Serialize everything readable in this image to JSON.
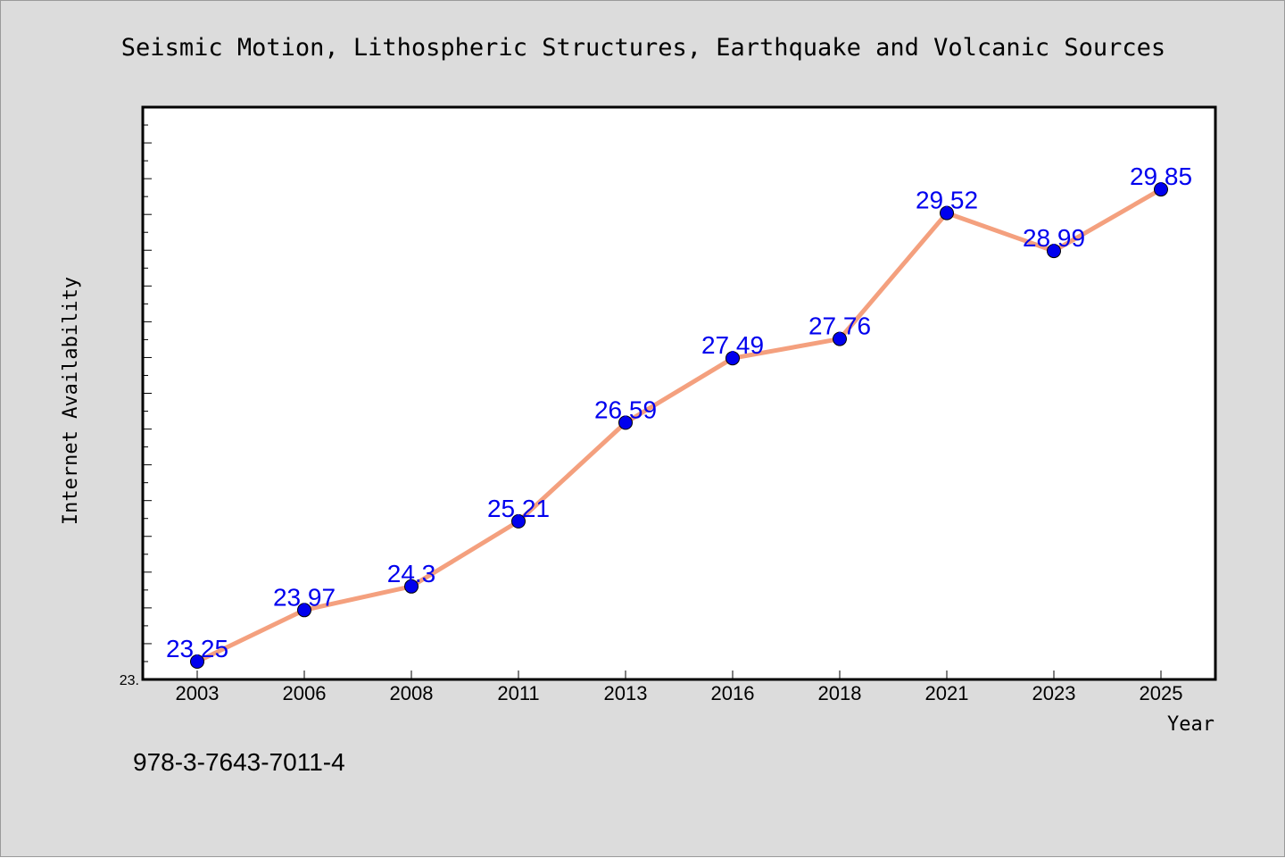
{
  "colors": {
    "background": "#dcdcdc",
    "plot_background": "#ffffff",
    "line": "#f4a07e",
    "marker": "#0000ee",
    "data_label": "#0000ee"
  },
  "isbn": "978-3-7643-7011-4",
  "chart_data": {
    "type": "line",
    "title": "Seismic Motion, Lithospheric Structures, Earthquake and Volcanic Sources",
    "xlabel": "Year",
    "ylabel": "Internet Availability",
    "categories": [
      "2003",
      "2006",
      "2008",
      "2011",
      "2013",
      "2016",
      "2018",
      "2021",
      "2023",
      "2025"
    ],
    "series": [
      {
        "values": [
          23.25,
          23.97,
          24.3,
          25.21,
          26.59,
          27.49,
          27.76,
          29.52,
          28.99,
          29.85
        ]
      }
    ],
    "data_labels": [
      "23.25",
      "23.97",
      "24.3",
      "25.21",
      "26.59",
      "27.49",
      "27.76",
      "29.52",
      "28.99",
      "29.85"
    ],
    "ylim": [
      23.0,
      31.0
    ],
    "y_tick_labels": [
      "23."
    ],
    "grid": false,
    "legend": "none"
  }
}
